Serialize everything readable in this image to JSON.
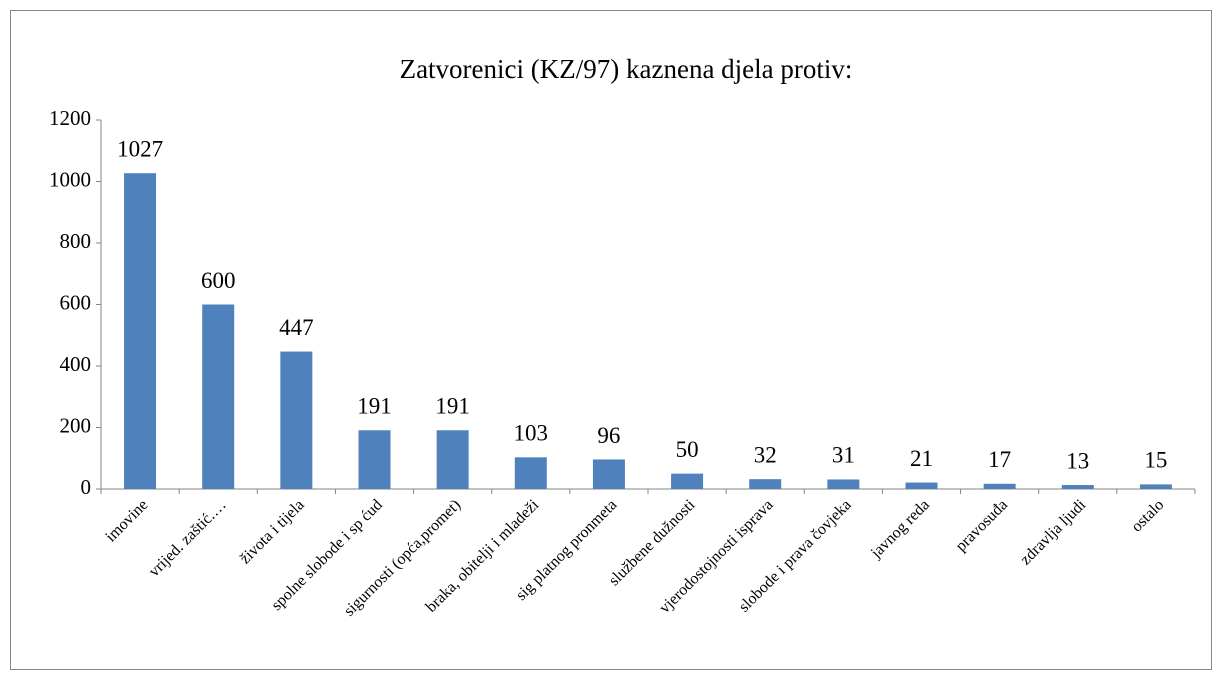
{
  "chart_data": {
    "type": "bar",
    "title": "Zatvorenici (KZ/97) kaznena djela protiv:",
    "categories": [
      "imovine",
      "vrijed. zaštić.…",
      "života i tijela",
      "spolne slobode i sp ćud",
      "sigurnosti (opća,promet)",
      "braka, obitelji i mladeži",
      "sig platnog pronmeta",
      "službene dužnosti",
      "vjerodostojnosti isprava",
      "slobode i prava čovjeka",
      "javnog reda",
      "pravosuđa",
      "zdravlja ljudi",
      "ostalo"
    ],
    "values": [
      1027,
      600,
      447,
      191,
      191,
      103,
      96,
      50,
      32,
      31,
      21,
      17,
      13,
      15
    ],
    "color": "#4f81bd",
    "ylim": [
      0,
      1200
    ],
    "yticks": [
      0,
      200,
      400,
      600,
      800,
      1000,
      1200
    ],
    "grid": false
  }
}
